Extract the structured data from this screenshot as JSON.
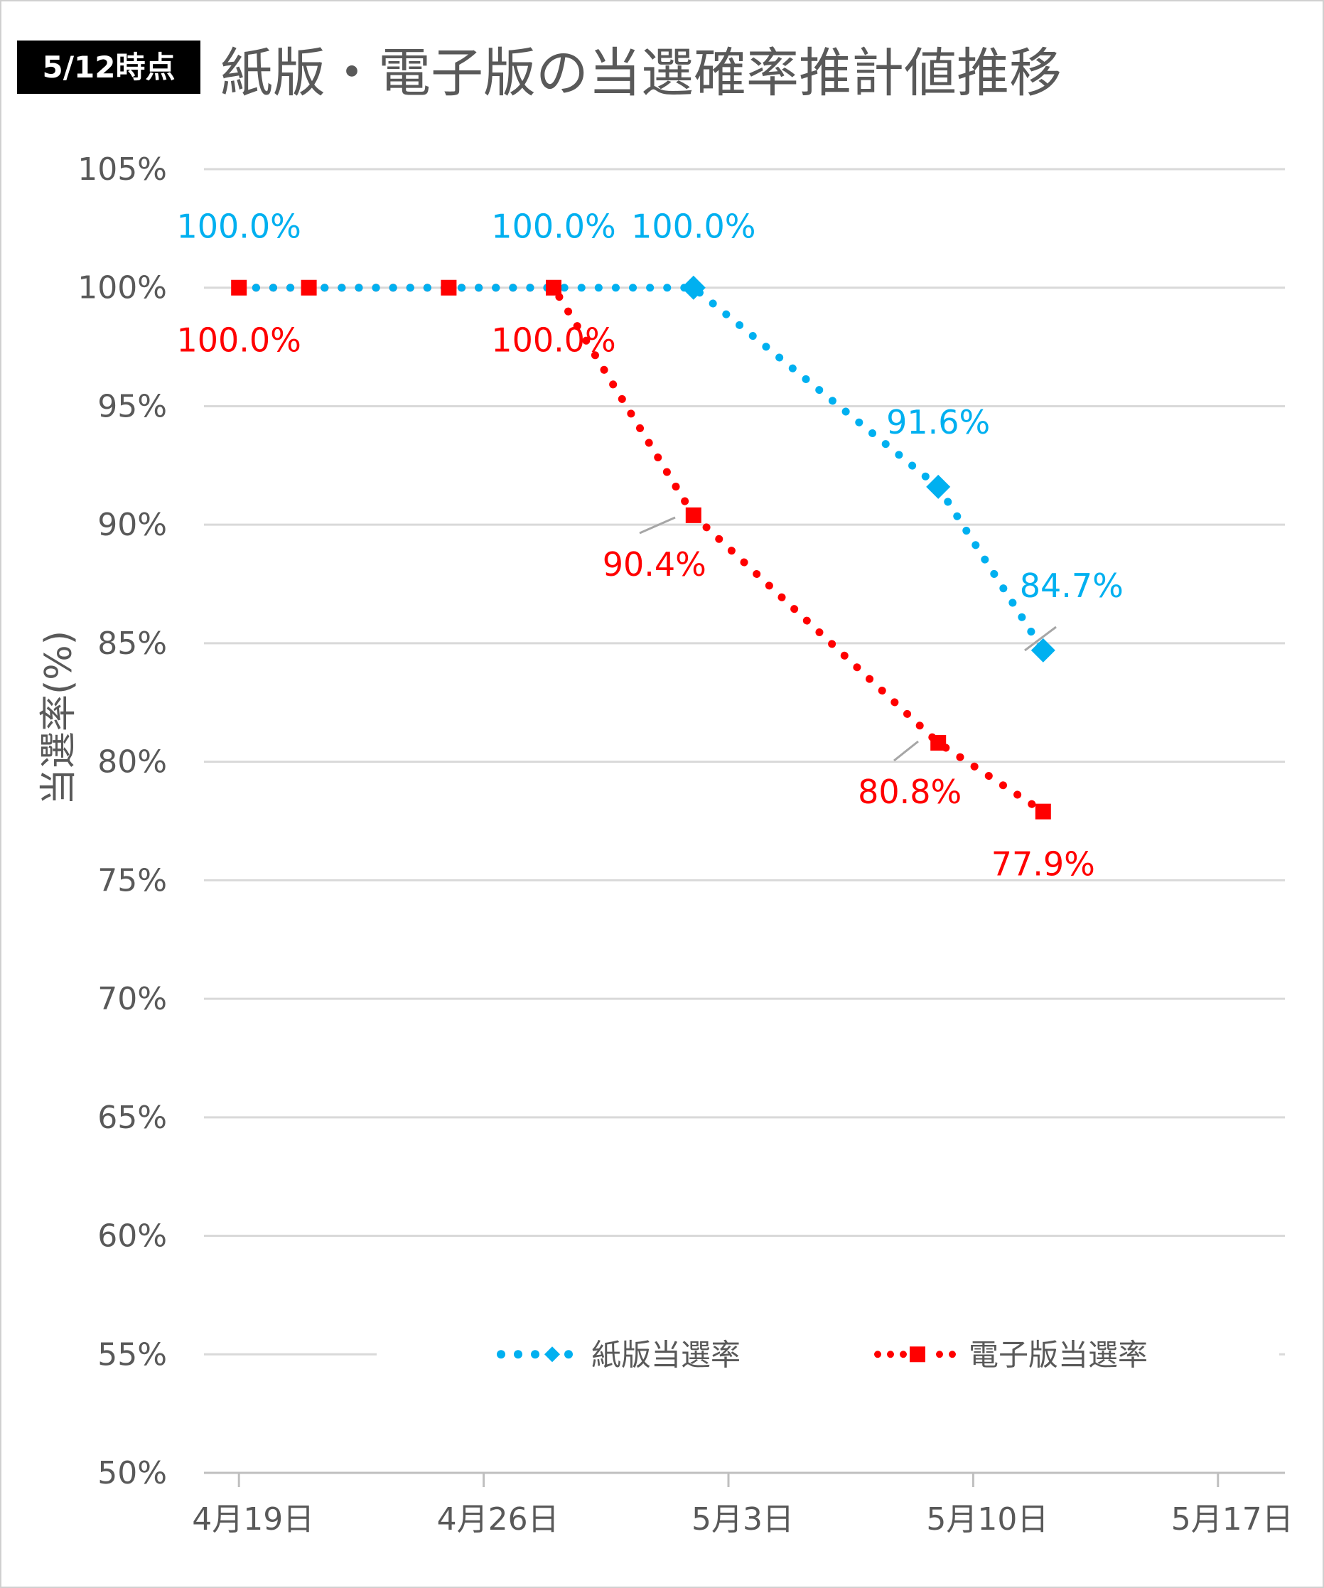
{
  "badge": "5/12時点",
  "chart_data": {
    "type": "line",
    "title": "紙版・電子版の当選確率推計値推移",
    "ylabel": "当選率(%)",
    "xlabel": "",
    "ylim": [
      50,
      105
    ],
    "yticks": [
      "50%",
      "55%",
      "60%",
      "65%",
      "70%",
      "75%",
      "80%",
      "85%",
      "90%",
      "95%",
      "100%",
      "105%"
    ],
    "xticks": [
      "4月19日",
      "4月26日",
      "5月3日",
      "5月10日",
      "5月17日"
    ],
    "grid": true,
    "legend_position": "bottom",
    "series": [
      {
        "name": "紙版当選率",
        "color": "#00B0F0",
        "marker": "diamond",
        "points": [
          {
            "date": "4月19日",
            "value": 100.0,
            "label": "100.0%"
          },
          {
            "date": "4月21日",
            "value": 100.0,
            "label": ""
          },
          {
            "date": "4月25日",
            "value": 100.0,
            "label": ""
          },
          {
            "date": "4月28日",
            "value": 100.0,
            "label": "100.0%"
          },
          {
            "date": "5月2日",
            "value": 100.0,
            "label": "100.0%"
          },
          {
            "date": "5月9日",
            "value": 91.6,
            "label": "91.6%"
          },
          {
            "date": "5月12日",
            "value": 84.7,
            "label": "84.7%"
          }
        ]
      },
      {
        "name": "電子版当選率",
        "color": "#FF0000",
        "marker": "square",
        "points": [
          {
            "date": "4月19日",
            "value": 100.0,
            "label": "100.0%"
          },
          {
            "date": "4月21日",
            "value": 100.0,
            "label": ""
          },
          {
            "date": "4月25日",
            "value": 100.0,
            "label": ""
          },
          {
            "date": "4月28日",
            "value": 100.0,
            "label": "100.0%"
          },
          {
            "date": "5月2日",
            "value": 90.4,
            "label": "90.4%"
          },
          {
            "date": "5月9日",
            "value": 80.8,
            "label": "80.8%"
          },
          {
            "date": "5月12日",
            "value": 77.9,
            "label": "77.9%"
          }
        ]
      }
    ]
  }
}
